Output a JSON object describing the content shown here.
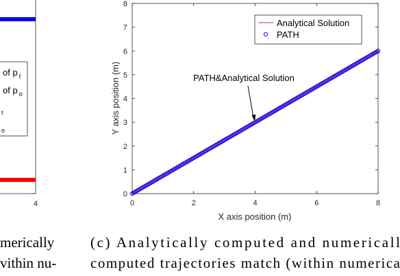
{
  "left_panel": {
    "tick_last": "4",
    "legend_lines": [
      "of p",
      "of p",
      "",
      ""
    ],
    "legend_subs": [
      "t",
      "o",
      "t",
      "o"
    ],
    "caption_lines": [
      "merically",
      "vithin nu-"
    ]
  },
  "caption": {
    "lines": [
      "(c) Analytically computed and numericall",
      "computed trajectories match (within numerica"
    ]
  },
  "chart_data": {
    "type": "line",
    "xlabel": "X axis position (m)",
    "ylabel": "Y axis position (m)",
    "xlim": [
      0,
      8
    ],
    "ylim": [
      0,
      8
    ],
    "xticks": [
      0,
      2,
      4,
      6,
      8
    ],
    "yticks": [
      0,
      1,
      2,
      3,
      4,
      5,
      6,
      7,
      8
    ],
    "grid": false,
    "legend_position": "top-right",
    "series": [
      {
        "name": "Analytical Solution",
        "style": "line",
        "color": "#d62728",
        "x": [
          0,
          8
        ],
        "y": [
          0,
          6
        ]
      },
      {
        "name": "PATH",
        "style": "circle-markers",
        "color": "#0000ff",
        "x": [
          0,
          8
        ],
        "y": [
          0,
          6
        ],
        "n_points": 200
      }
    ],
    "annotation": {
      "text": "PATH&Analytical Solution",
      "points_to": [
        4,
        3
      ]
    }
  }
}
